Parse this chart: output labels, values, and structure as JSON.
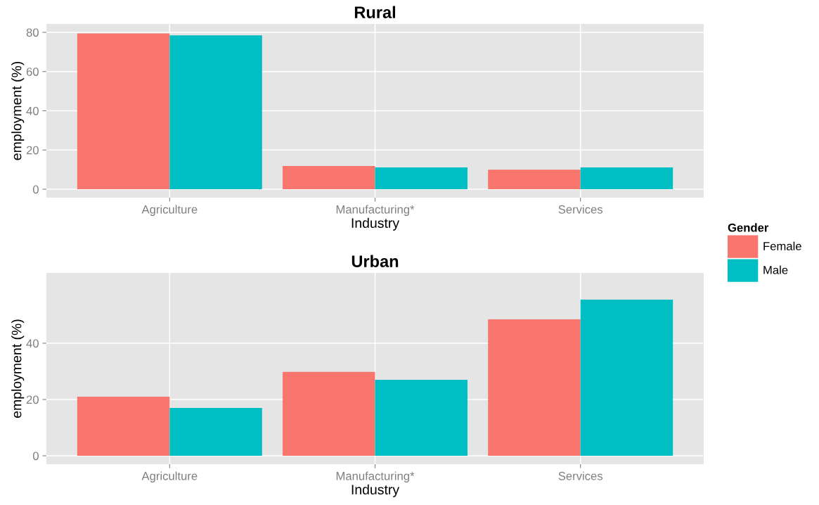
{
  "chart_data": [
    {
      "type": "bar",
      "title": "Rural",
      "xlabel": "Industry",
      "ylabel": "employment (%)",
      "categories": [
        "Agriculture",
        "Manufacturing*",
        "Services"
      ],
      "series": [
        {
          "name": "Female",
          "color": "#f8766d",
          "values": [
            79.5,
            11.8,
            10
          ]
        },
        {
          "name": "Male",
          "color": "#00bfc4",
          "values": [
            78.5,
            11.1,
            11.1
          ]
        }
      ],
      "ylim": [
        -4.3,
        84.3
      ],
      "yticks": [
        0,
        20,
        40,
        60,
        80
      ],
      "grid": true,
      "legend": "right",
      "legend_title": "Gender"
    },
    {
      "type": "bar",
      "title": "Urban",
      "xlabel": "Industry",
      "ylabel": "employment (%)",
      "categories": [
        "Agriculture",
        "Manufacturing*",
        "Services"
      ],
      "series": [
        {
          "name": "Female",
          "color": "#f8766d",
          "values": [
            21,
            29.8,
            48.5
          ]
        },
        {
          "name": "Male",
          "color": "#00bfc4",
          "values": [
            17,
            27,
            55.5
          ]
        }
      ],
      "ylim": [
        -3,
        65
      ],
      "yticks": [
        0,
        20,
        40
      ],
      "grid": true
    }
  ]
}
